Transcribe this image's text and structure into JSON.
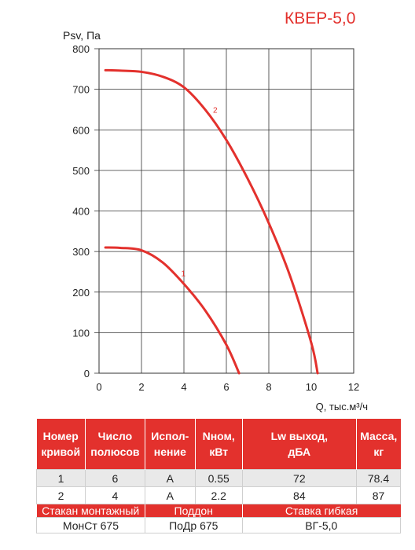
{
  "title": "КВЕР-5,0",
  "chart_data": {
    "type": "line",
    "title": "КВЕР-5,0",
    "xlabel": "Q, тыс.м³/ч",
    "ylabel": "Psv, Па",
    "xlim": [
      0,
      12
    ],
    "ylim": [
      0,
      800
    ],
    "xticks": [
      0,
      2,
      4,
      6,
      8,
      10,
      12
    ],
    "yticks": [
      0,
      100,
      200,
      300,
      400,
      500,
      600,
      700,
      800
    ],
    "grid": true,
    "line_color": "#e3312d",
    "series": [
      {
        "name": "1",
        "x": [
          0.3,
          1.0,
          2.0,
          3.0,
          4.0,
          5.0,
          6.0,
          6.6
        ],
        "y": [
          310,
          309,
          303,
          273,
          220,
          155,
          70,
          0
        ]
      },
      {
        "name": "2",
        "x": [
          0.3,
          1.0,
          2.0,
          3.0,
          4.0,
          5.0,
          6.0,
          7.0,
          8.0,
          9.0,
          10.0,
          10.3
        ],
        "y": [
          747,
          746,
          743,
          731,
          705,
          650,
          575,
          480,
          370,
          240,
          75,
          0
        ]
      }
    ]
  },
  "table": {
    "headers": [
      [
        "Номер",
        "кривой"
      ],
      [
        "Число",
        "полюсов"
      ],
      [
        "Испол-",
        "нение"
      ],
      [
        "Nном,",
        "кВт"
      ],
      [
        "Lw выход,",
        "дБА"
      ],
      [
        "Масса,",
        "кг"
      ]
    ],
    "rows": [
      [
        "1",
        "6",
        "A",
        "0.55",
        "72",
        "78.4"
      ],
      [
        "2",
        "4",
        "A",
        "2.2",
        "84",
        "87"
      ]
    ],
    "accessories": {
      "labels": [
        "Стакан монтажный",
        "Поддон",
        "Ставка гибкая"
      ],
      "values": [
        "МонСт 675",
        "ПоДр 675",
        "ВГ-5,0"
      ]
    }
  }
}
